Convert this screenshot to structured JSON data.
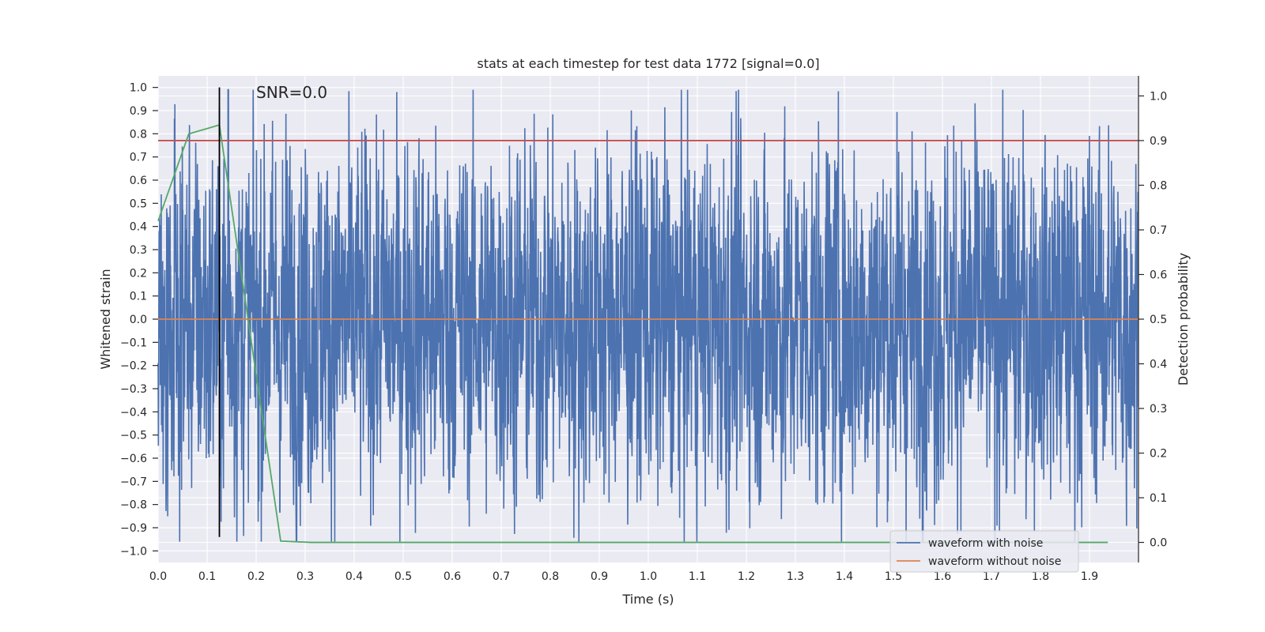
{
  "chart_data": {
    "type": "line",
    "title": "stats at each timestep for test data 1772 [signal=0.0]",
    "xlabel": "Time (s)",
    "ylabel": "Whitened strain",
    "y2label": "Detection probability",
    "xlim": [
      0.0,
      2.0
    ],
    "ylim": [
      -1.05,
      1.05
    ],
    "y2lim": [
      -0.045,
      1.045
    ],
    "xticks": [
      "0.0",
      "0.1",
      "0.2",
      "0.3",
      "0.4",
      "0.5",
      "0.6",
      "0.7",
      "0.8",
      "0.9",
      "1.0",
      "1.1",
      "1.2",
      "1.3",
      "1.4",
      "1.5",
      "1.6",
      "1.7",
      "1.8",
      "1.9"
    ],
    "yticks": [
      "1.0",
      "0.9",
      "0.8",
      "0.7",
      "0.6",
      "0.5",
      "0.4",
      "0.3",
      "0.2",
      "0.1",
      "0.0",
      "−0.1",
      "−0.2",
      "−0.3",
      "−0.4",
      "−0.5",
      "−0.6",
      "−0.7",
      "−0.8",
      "−0.9",
      "−1.0"
    ],
    "y2ticks": [
      "1.0",
      "0.9",
      "0.8",
      "0.7",
      "0.6",
      "0.5",
      "0.4",
      "0.3",
      "0.2",
      "0.1",
      "0.0"
    ],
    "grid": true,
    "legend_position": "lower-right",
    "annotation": "SNR=0.0",
    "series": [
      {
        "name": "waveform with noise",
        "axis": "left",
        "color": "#4c72b0",
        "sample_rate": 2048,
        "amplitude_range": [
          -1.0,
          1.0
        ],
        "note_values": "dense noise trace, peaks at ~1.0 near t=0.14"
      },
      {
        "name": "waveform without noise",
        "axis": "left",
        "color": "#dd8452",
        "x": [
          0.0,
          2.0
        ],
        "y": [
          0.0,
          0.0
        ]
      },
      {
        "axis": "right",
        "color": "#55a868",
        "x": [
          0.0,
          0.0625,
          0.125,
          0.25,
          0.3125,
          1.9375
        ],
        "y": [
          0.72,
          0.915,
          0.935,
          0.003,
          0.0,
          0.0
        ]
      },
      {
        "axis": "right",
        "color": "#c44e52",
        "type": "hline",
        "y": 0.9
      },
      {
        "axis": "left",
        "color": "#000000",
        "type": "vline",
        "x": 0.125,
        "y_range": [
          -0.94,
          1.0
        ]
      }
    ]
  },
  "colors": {
    "plot_bg": "#eaeaf2",
    "grid": "#ffffff",
    "noise": "#4c72b0",
    "clean": "#dd8452",
    "prob": "#55a868",
    "threshold": "#c44e52",
    "marker": "#000000"
  }
}
